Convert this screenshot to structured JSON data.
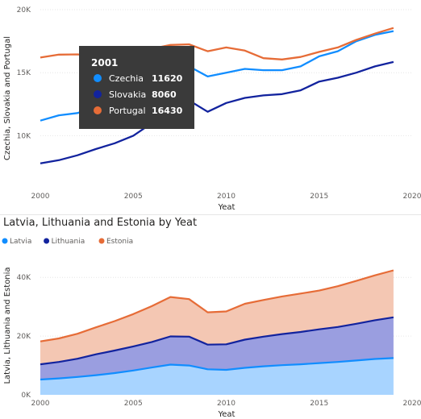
{
  "colors": {
    "czechia": "#118dff",
    "slovakia": "#12239e",
    "portugal": "#e66c37",
    "latvia": "#118dff",
    "lithuania": "#12239e",
    "estonia": "#e66c37",
    "tooltip_bg": "#3a3a3a",
    "separator": "#e6e6e6"
  },
  "chart_data": [
    {
      "type": "line",
      "title": "",
      "xlabel": "Yeat",
      "ylabel": "Czechia, Slovakia and Portugal",
      "x": [
        2000,
        2001,
        2002,
        2003,
        2004,
        2005,
        2006,
        2007,
        2008,
        2009,
        2010,
        2011,
        2012,
        2013,
        2014,
        2015,
        2016,
        2017,
        2018,
        2019
      ],
      "xlim": [
        2000,
        2020
      ],
      "x_ticks": [
        "2000",
        "2005",
        "2010",
        "2015",
        "2020"
      ],
      "ylim": [
        6000,
        20000
      ],
      "y_ticks": [
        {
          "value": 10000,
          "label": "10K"
        },
        {
          "value": 15000,
          "label": "15K"
        },
        {
          "value": 20000,
          "label": "20K"
        }
      ],
      "series": [
        {
          "name": "Czechia",
          "color": "#118dff",
          "values": [
            11200,
            11620,
            11800,
            12300,
            12900,
            13700,
            14500,
            15300,
            15500,
            14700,
            15000,
            15300,
            15200,
            15200,
            15500,
            16300,
            16700,
            17500,
            18000,
            18300
          ]
        },
        {
          "name": "Slovakia",
          "color": "#12239e",
          "values": [
            7800,
            8060,
            8450,
            8950,
            9400,
            10000,
            11000,
            12300,
            12800,
            11900,
            12600,
            13000,
            13200,
            13300,
            13600,
            14300,
            14600,
            15000,
            15500,
            15850
          ]
        },
        {
          "name": "Portugal",
          "color": "#e66c37",
          "values": [
            16200,
            16430,
            16450,
            16300,
            16500,
            16600,
            16900,
            17200,
            17250,
            16700,
            17000,
            16750,
            16150,
            16050,
            16250,
            16650,
            17000,
            17600,
            18100,
            18550
          ]
        }
      ],
      "tooltip": {
        "title": "2001",
        "rows": [
          {
            "label": "Czechia",
            "value": "11620",
            "color": "#118dff"
          },
          {
            "label": "Slovakia",
            "value": "8060",
            "color": "#12239e"
          },
          {
            "label": "Portugal",
            "value": "16430",
            "color": "#e66c37"
          }
        ]
      }
    },
    {
      "type": "area",
      "stacked": true,
      "title": "Latvia, Lithuania and Estonia by Yeat",
      "xlabel": "Yeat",
      "ylabel": "Latvia, Lithuania and Estonia",
      "x": [
        2000,
        2001,
        2002,
        2003,
        2004,
        2005,
        2006,
        2007,
        2008,
        2009,
        2010,
        2011,
        2012,
        2013,
        2014,
        2015,
        2016,
        2017,
        2018,
        2019
      ],
      "xlim": [
        2000,
        2020
      ],
      "x_ticks": [
        "2000",
        "2005",
        "2010",
        "2015",
        "2020"
      ],
      "ylim": [
        0,
        45000
      ],
      "y_ticks": [
        {
          "value": 0,
          "label": "0K"
        },
        {
          "value": 20000,
          "label": "20K"
        },
        {
          "value": 40000,
          "label": "40K"
        }
      ],
      "legend": [
        "Latvia",
        "Lithuania",
        "Estonia"
      ],
      "legend_position": "top-left",
      "series": [
        {
          "name": "Latvia",
          "color": "#118dff",
          "values": [
            5200,
            5600,
            6100,
            6700,
            7400,
            8300,
            9300,
            10300,
            10000,
            8700,
            8500,
            9200,
            9700,
            10100,
            10400,
            10800,
            11200,
            11700,
            12200,
            12500
          ]
        },
        {
          "name": "Lithuania",
          "color": "#12239e",
          "values": [
            5200,
            5600,
            6200,
            7100,
            7700,
            8200,
            8700,
            9600,
            9800,
            8400,
            8700,
            9600,
            10100,
            10600,
            11000,
            11500,
            11900,
            12500,
            13200,
            13900
          ]
        },
        {
          "name": "Estonia",
          "color": "#e66c37",
          "values": [
            7800,
            8000,
            8500,
            9200,
            10000,
            11000,
            12200,
            13400,
            12800,
            11000,
            11200,
            12200,
            12500,
            12800,
            13100,
            13200,
            13900,
            14600,
            15300,
            16000
          ]
        }
      ]
    }
  ]
}
